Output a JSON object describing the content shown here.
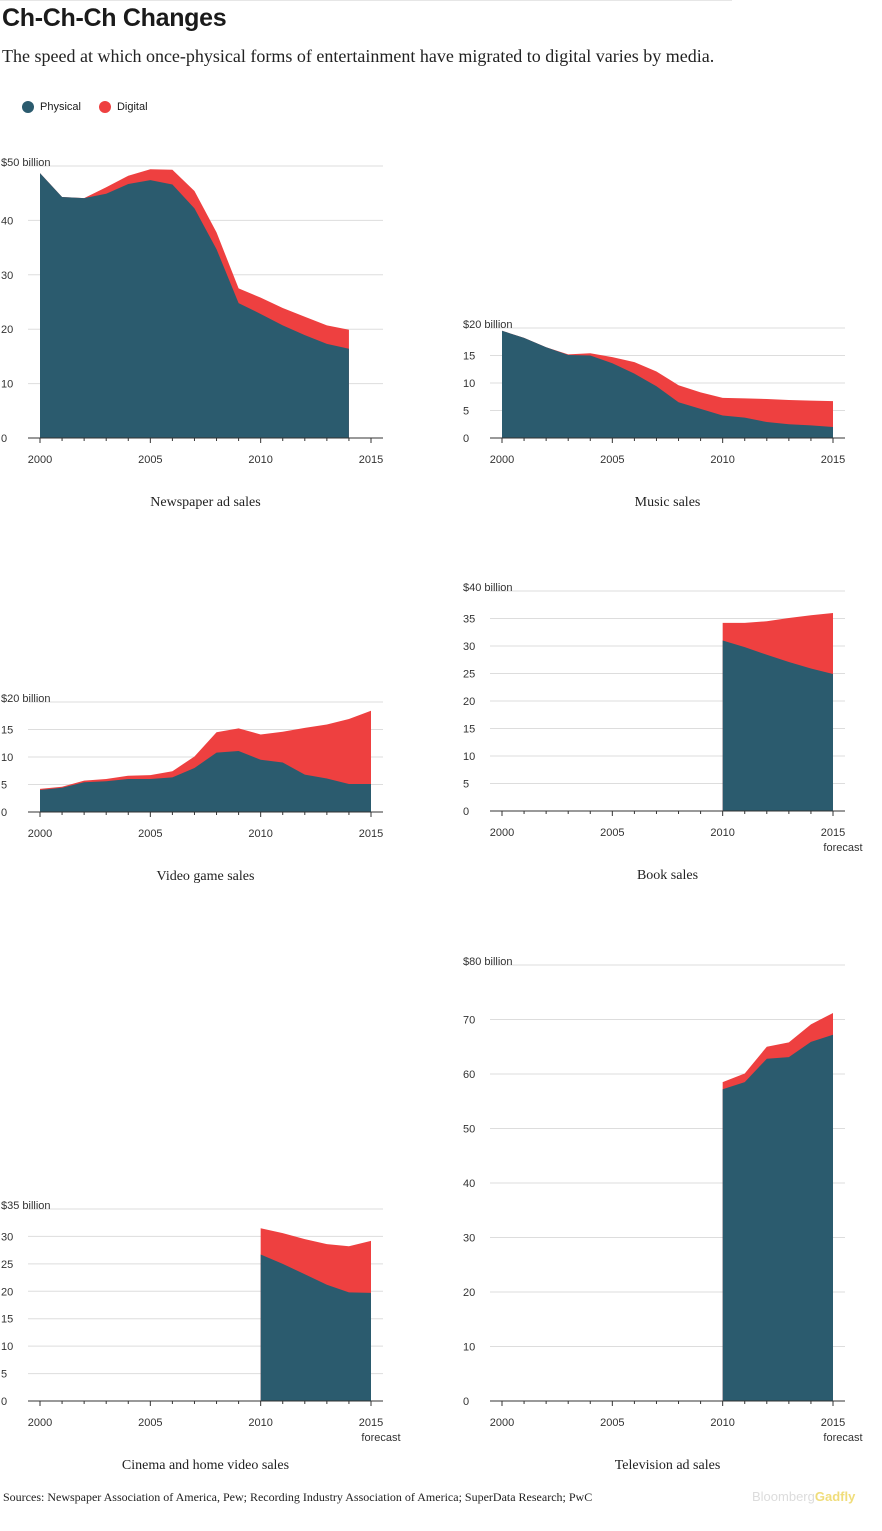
{
  "header": {
    "title": "Ch-Ch-Ch Changes",
    "subtitle": "The speed at which once-physical forms of entertainment have migrated to digital varies by media."
  },
  "legend": [
    {
      "label": "Physical",
      "color": "#2b5b6e"
    },
    {
      "label": "Digital",
      "color": "#ee4040"
    }
  ],
  "colors": {
    "physical": "#2b5b6e",
    "digital": "#ee4040",
    "grid": "#dddddd",
    "axis": "#333333"
  },
  "footer": {
    "sources": "Sources: Newspaper Association of America, Pew; Recording Industry Association of America; SuperData Research; PwC",
    "brand_a": "Bloomberg",
    "brand_b": "Gadfly"
  },
  "chart_data": [
    {
      "type": "area",
      "title": "Newspaper ad sales",
      "x": [
        2000,
        2001,
        2002,
        2003,
        2004,
        2005,
        2006,
        2007,
        2008,
        2009,
        2010,
        2011,
        2012,
        2013,
        2014
      ],
      "series": [
        {
          "name": "Physical",
          "values": [
            48.7,
            44.3,
            44.1,
            44.9,
            46.7,
            47.4,
            46.6,
            42.2,
            34.7,
            24.8,
            22.8,
            20.7,
            18.9,
            17.3,
            16.4
          ]
        },
        {
          "name": "Digital",
          "values": [
            0,
            0,
            0,
            1.2,
            1.5,
            2.0,
            2.7,
            3.2,
            3.1,
            2.7,
            3.0,
            3.2,
            3.4,
            3.4,
            3.5
          ]
        }
      ],
      "ylim": [
        0,
        50
      ],
      "ytick_labels": [
        "0",
        "10",
        "20",
        "30",
        "40",
        "$50 billion"
      ],
      "xtick_labels": [
        "2000",
        "2005",
        "2010",
        "2015"
      ],
      "forecast_label": ""
    },
    {
      "type": "area",
      "title": "Music sales",
      "x": [
        2000,
        2001,
        2002,
        2003,
        2004,
        2005,
        2006,
        2007,
        2008,
        2009,
        2010,
        2011,
        2012,
        2013,
        2014,
        2015
      ],
      "series": [
        {
          "name": "Physical",
          "values": [
            19.5,
            18.2,
            16.5,
            15.1,
            15.0,
            13.6,
            11.7,
            9.4,
            6.5,
            5.3,
            4.1,
            3.7,
            2.9,
            2.5,
            2.3,
            2.0
          ]
        },
        {
          "name": "Digital",
          "values": [
            0,
            0,
            0,
            0.1,
            0.4,
            1.1,
            2.1,
            2.7,
            3.1,
            3.0,
            3.2,
            3.5,
            4.2,
            4.4,
            4.5,
            4.7
          ]
        }
      ],
      "ylim": [
        0,
        20
      ],
      "ytick_labels": [
        "0",
        "5",
        "10",
        "15",
        "$20 billion"
      ],
      "xtick_labels": [
        "2000",
        "2005",
        "2010",
        "2015"
      ],
      "forecast_label": ""
    },
    {
      "type": "area",
      "title": "Video game sales",
      "x": [
        2000,
        2001,
        2002,
        2003,
        2004,
        2005,
        2006,
        2007,
        2008,
        2009,
        2010,
        2011,
        2012,
        2013,
        2014,
        2015
      ],
      "series": [
        {
          "name": "Physical",
          "values": [
            4.0,
            4.4,
            5.4,
            5.6,
            6.0,
            6.0,
            6.3,
            8.0,
            10.8,
            11.1,
            9.5,
            9.0,
            6.8,
            6.1,
            5.1,
            5.1
          ]
        },
        {
          "name": "Digital",
          "values": [
            0.2,
            0.2,
            0.3,
            0.4,
            0.6,
            0.7,
            1.1,
            2.1,
            3.7,
            4.1,
            4.6,
            5.6,
            8.5,
            9.8,
            11.8,
            13.3
          ]
        }
      ],
      "ylim": [
        0,
        20
      ],
      "ytick_labels": [
        "0",
        "5",
        "10",
        "15",
        "$20 billion"
      ],
      "xtick_labels": [
        "2000",
        "2005",
        "2010",
        "2015"
      ],
      "forecast_label": ""
    },
    {
      "type": "area",
      "title": "Book sales",
      "x": [
        2010,
        2011,
        2012,
        2013,
        2014,
        2015
      ],
      "series": [
        {
          "name": "Physical",
          "values": [
            31.0,
            29.8,
            28.4,
            27.1,
            25.9,
            24.9
          ]
        },
        {
          "name": "Digital",
          "values": [
            3.2,
            4.4,
            6.1,
            8.0,
            9.7,
            11.1
          ]
        }
      ],
      "ylim": [
        0,
        40
      ],
      "ytick_labels": [
        "0",
        "5",
        "10",
        "15",
        "20",
        "25",
        "30",
        "35",
        "$40 billion"
      ],
      "xtick_labels": [
        "2000",
        "2005",
        "2010",
        "2015"
      ],
      "forecast_label": "forecast"
    },
    {
      "type": "area",
      "title": "Cinema and home video sales",
      "x": [
        2010,
        2011,
        2012,
        2013,
        2014,
        2015
      ],
      "series": [
        {
          "name": "Physical",
          "values": [
            26.7,
            25.0,
            23.1,
            21.2,
            19.8,
            19.7
          ]
        },
        {
          "name": "Digital",
          "values": [
            4.8,
            5.6,
            6.4,
            7.4,
            8.4,
            9.5
          ]
        }
      ],
      "ylim": [
        0,
        35
      ],
      "ytick_labels": [
        "0",
        "5",
        "10",
        "15",
        "20",
        "25",
        "30",
        "$35 billion"
      ],
      "xtick_labels": [
        "2000",
        "2005",
        "2010",
        "2015"
      ],
      "forecast_label": "forecast"
    },
    {
      "type": "area",
      "title": "Television ad sales",
      "x": [
        2010,
        2011,
        2012,
        2013,
        2014,
        2015
      ],
      "series": [
        {
          "name": "Physical",
          "values": [
            57.2,
            58.5,
            62.8,
            63.1,
            65.9,
            67.2
          ]
        },
        {
          "name": "Digital",
          "values": [
            1.3,
            1.6,
            2.2,
            2.7,
            3.2,
            4.0
          ]
        }
      ],
      "ylim": [
        0,
        80
      ],
      "ytick_labels": [
        "0",
        "10",
        "20",
        "30",
        "40",
        "50",
        "60",
        "70",
        "$80 billion"
      ],
      "xtick_labels": [
        "2000",
        "2005",
        "2010",
        "2015"
      ],
      "forecast_label": "forecast"
    }
  ]
}
